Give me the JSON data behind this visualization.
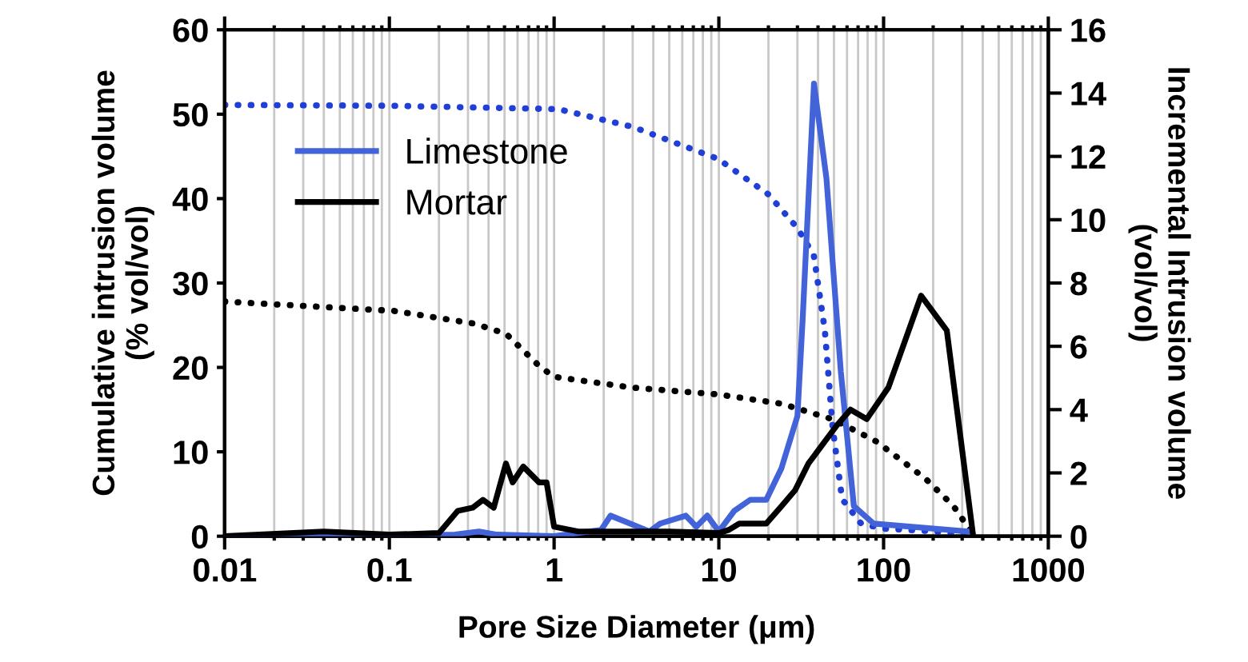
{
  "chart_data": {
    "type": "line",
    "xlabel": "Pore Size Diameter (μm)",
    "ylabel": "Cumulative intrusion volume\n(% vol/vol)",
    "y2label": "Incremental Intrusion volume\n(vol/vol)",
    "log": "x",
    "xlim": [
      0.01,
      1000
    ],
    "xticks": [
      0.01,
      0.1,
      1,
      10,
      100,
      1000
    ],
    "ylim": [
      0,
      60
    ],
    "yticks": [
      0,
      10,
      20,
      30,
      40,
      50,
      60
    ],
    "y2lim": [
      0,
      16
    ],
    "y2ticks": [
      0,
      2,
      4,
      6,
      8,
      10,
      12,
      14,
      16
    ],
    "grid": "x",
    "legend": "top left",
    "series": [
      {
        "name": "Limestone",
        "color": "#4363d8",
        "axis": "y2",
        "line_style": "solid",
        "x": [
          0.01,
          0.1,
          0.25,
          0.35,
          0.45,
          1.0,
          1.93,
          2.2,
          3.8,
          4.4,
          6.3,
          7.3,
          8.5,
          10,
          12.4,
          15.5,
          19.4,
          24,
          30,
          32.3,
          37.8,
          45,
          55,
          66,
          87,
          328
        ],
        "values": [
          0,
          0,
          0.05,
          0.15,
          0.05,
          0,
          0.2,
          0.65,
          0.15,
          0.4,
          0.65,
          0.3,
          0.65,
          0.15,
          0.8,
          1.15,
          1.15,
          2.15,
          3.8,
          6.9,
          14.3,
          11.3,
          5.2,
          0.95,
          0.4,
          0.15
        ]
      },
      {
        "name": "Mortar",
        "color": "#000000",
        "axis": "y2",
        "line_style": "solid",
        "x": [
          0.01,
          0.04,
          0.1,
          0.2,
          0.26,
          0.32,
          0.37,
          0.43,
          0.51,
          0.56,
          0.65,
          0.81,
          0.9,
          1.0,
          1.4,
          5,
          10,
          11.5,
          13.3,
          19.4,
          24,
          29,
          35,
          52,
          63,
          79,
          107,
          169,
          242,
          350
        ],
        "values": [
          0,
          0.15,
          0.05,
          0.1,
          0.8,
          0.9,
          1.15,
          0.9,
          2.3,
          1.7,
          2.2,
          1.7,
          1.7,
          0.3,
          0.15,
          0.15,
          0.1,
          0.2,
          0.4,
          0.4,
          0.95,
          1.45,
          2.3,
          3.5,
          4.0,
          3.7,
          4.7,
          7.6,
          6.5,
          0
        ]
      },
      {
        "color": "#1f3fd6",
        "line_style": "dotted",
        "x": [
          0.01,
          0.1,
          1.06,
          3.0,
          9.9,
          20,
          30,
          37.7,
          44,
          49,
          56,
          73,
          100,
          200,
          328
        ],
        "values": [
          51.1,
          51,
          50.6,
          48.5,
          44.7,
          40.5,
          36.5,
          33.3,
          24.4,
          13,
          4.4,
          1.5,
          0.9,
          0.6,
          0.2
        ]
      },
      {
        "color": "#000000",
        "line_style": "dotted",
        "x": [
          0.01,
          0.106,
          0.325,
          0.51,
          0.79,
          0.99,
          3.0,
          9.9,
          24,
          50,
          91,
          180,
          265,
          350
        ],
        "values": [
          27.8,
          26.7,
          25.2,
          24,
          20.4,
          18.9,
          17.6,
          16.8,
          15.7,
          13.8,
          11.2,
          6.8,
          3.6,
          0.2
        ]
      }
    ]
  }
}
